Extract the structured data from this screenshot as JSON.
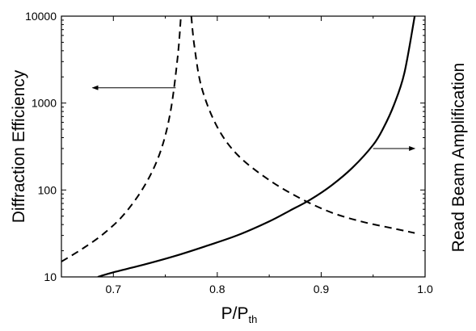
{
  "chart_data": {
    "type": "line",
    "xlabel": "P/P",
    "xlabel_subscript": "th",
    "ylabel": "Diffraction Efficiency",
    "y2label": "Read Beam Amplification",
    "xlim": [
      0.65,
      1.0
    ],
    "ylim": [
      10,
      10000
    ],
    "yscale": "log",
    "grid": false,
    "x_ticks": [
      0.7,
      0.8,
      0.9,
      1.0
    ],
    "x_tick_labels": [
      "0.7",
      "0.8",
      "0.9",
      "1.0"
    ],
    "y_ticks": [
      10,
      100,
      1000,
      10000
    ],
    "y_tick_labels": [
      "10",
      "100",
      "1000",
      "10000"
    ],
    "series": [
      {
        "style": "dashed",
        "axis": "left",
        "x": [
          0.65,
          0.67,
          0.69,
          0.71,
          0.73,
          0.745,
          0.755,
          0.762,
          0.765,
          0.775,
          0.778,
          0.785,
          0.8,
          0.82,
          0.85,
          0.88,
          0.91,
          0.94,
          0.97,
          0.99
        ],
        "y": [
          15,
          21,
          31,
          52,
          112,
          270,
          800,
          3500,
          10000,
          10000,
          4500,
          1500,
          530,
          250,
          130,
          80,
          55,
          43,
          36,
          32
        ]
      },
      {
        "style": "solid",
        "axis": "right",
        "x": [
          0.685,
          0.7,
          0.73,
          0.76,
          0.79,
          0.82,
          0.85,
          0.87,
          0.89,
          0.91,
          0.93,
          0.95,
          0.96,
          0.97,
          0.98,
          0.99
        ],
        "y": [
          10,
          11.3,
          13.9,
          17.5,
          22.8,
          30.3,
          43.5,
          58,
          78,
          113,
          180,
          330,
          520,
          950,
          2200,
          10000
        ]
      }
    ],
    "annotations": [
      {
        "type": "arrow",
        "points_to": "left",
        "x_from": 0.76,
        "x_to": 0.68,
        "y": 1500
      },
      {
        "type": "arrow",
        "points_to": "right",
        "x_from": 0.95,
        "x_to": 0.99,
        "y": 300
      }
    ]
  }
}
